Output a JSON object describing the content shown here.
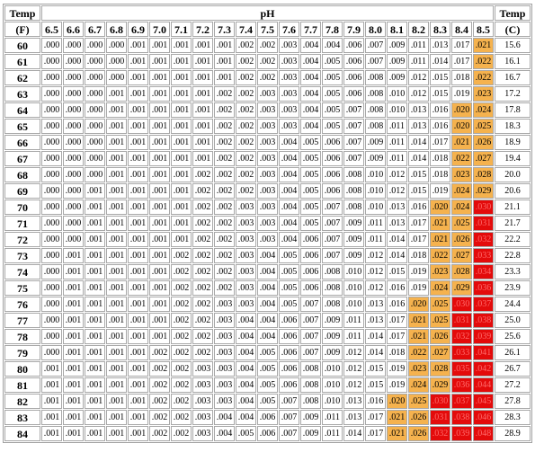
{
  "header": {
    "left_title": "Temp",
    "left_unit": "(F)",
    "center_title": "pH",
    "right_title": "Temp",
    "right_unit": "(C)"
  },
  "ph_values": [
    "6.5",
    "6.6",
    "6.7",
    "6.8",
    "6.9",
    "7.0",
    "7.1",
    "7.2",
    "7.3",
    "7.4",
    "7.5",
    "7.6",
    "7.7",
    "7.8",
    "7.9",
    "8.0",
    "8.1",
    "8.2",
    "8.3",
    "8.4",
    "8.5"
  ],
  "colors": {
    "orange": "#f5b24e",
    "red": "#e30b0b",
    "red_text": "#ff6a6a"
  },
  "rows": [
    {
      "f": "60",
      "c": "15.6",
      "v": [
        ".000",
        ".000",
        ".000",
        ".000",
        ".001",
        ".001",
        ".001",
        ".001",
        ".001",
        ".002",
        ".002",
        ".003",
        ".004",
        ".004",
        ".006",
        ".007",
        ".009",
        ".011",
        ".013",
        ".017",
        ".021"
      ],
      "lvl": [
        0,
        0,
        0,
        0,
        0,
        0,
        0,
        0,
        0,
        0,
        0,
        0,
        0,
        0,
        0,
        0,
        0,
        0,
        0,
        0,
        1
      ]
    },
    {
      "f": "61",
      "c": "16.1",
      "v": [
        ".000",
        ".000",
        ".000",
        ".000",
        ".001",
        ".001",
        ".001",
        ".001",
        ".001",
        ".002",
        ".002",
        ".003",
        ".004",
        ".005",
        ".006",
        ".007",
        ".009",
        ".011",
        ".014",
        ".017",
        ".022"
      ],
      "lvl": [
        0,
        0,
        0,
        0,
        0,
        0,
        0,
        0,
        0,
        0,
        0,
        0,
        0,
        0,
        0,
        0,
        0,
        0,
        0,
        0,
        1
      ]
    },
    {
      "f": "62",
      "c": "16.7",
      "v": [
        ".000",
        ".000",
        ".000",
        ".000",
        ".001",
        ".001",
        ".001",
        ".001",
        ".001",
        ".002",
        ".002",
        ".003",
        ".004",
        ".005",
        ".006",
        ".008",
        ".009",
        ".012",
        ".015",
        ".018",
        ".022"
      ],
      "lvl": [
        0,
        0,
        0,
        0,
        0,
        0,
        0,
        0,
        0,
        0,
        0,
        0,
        0,
        0,
        0,
        0,
        0,
        0,
        0,
        0,
        1
      ]
    },
    {
      "f": "63",
      "c": "17.2",
      "v": [
        ".000",
        ".000",
        ".000",
        ".001",
        ".001",
        ".001",
        ".001",
        ".001",
        ".002",
        ".002",
        ".003",
        ".003",
        ".004",
        ".005",
        ".006",
        ".008",
        ".010",
        ".012",
        ".015",
        ".019",
        ".023"
      ],
      "lvl": [
        0,
        0,
        0,
        0,
        0,
        0,
        0,
        0,
        0,
        0,
        0,
        0,
        0,
        0,
        0,
        0,
        0,
        0,
        0,
        0,
        1
      ]
    },
    {
      "f": "64",
      "c": "17.8",
      "v": [
        ".000",
        ".000",
        ".000",
        ".001",
        ".001",
        ".001",
        ".001",
        ".001",
        ".002",
        ".002",
        ".003",
        ".003",
        ".004",
        ".005",
        ".007",
        ".008",
        ".010",
        ".013",
        ".016",
        ".020",
        ".024"
      ],
      "lvl": [
        0,
        0,
        0,
        0,
        0,
        0,
        0,
        0,
        0,
        0,
        0,
        0,
        0,
        0,
        0,
        0,
        0,
        0,
        0,
        1,
        1
      ]
    },
    {
      "f": "65",
      "c": "18.3",
      "v": [
        ".000",
        ".000",
        ".000",
        ".001",
        ".001",
        ".001",
        ".001",
        ".001",
        ".002",
        ".002",
        ".003",
        ".003",
        ".004",
        ".005",
        ".007",
        ".008",
        ".011",
        ".013",
        ".016",
        ".020",
        ".025"
      ],
      "lvl": [
        0,
        0,
        0,
        0,
        0,
        0,
        0,
        0,
        0,
        0,
        0,
        0,
        0,
        0,
        0,
        0,
        0,
        0,
        0,
        1,
        1
      ]
    },
    {
      "f": "66",
      "c": "18.9",
      "v": [
        ".000",
        ".000",
        ".000",
        ".001",
        ".001",
        ".001",
        ".001",
        ".001",
        ".002",
        ".002",
        ".003",
        ".004",
        ".005",
        ".006",
        ".007",
        ".009",
        ".011",
        ".014",
        ".017",
        ".021",
        ".026"
      ],
      "lvl": [
        0,
        0,
        0,
        0,
        0,
        0,
        0,
        0,
        0,
        0,
        0,
        0,
        0,
        0,
        0,
        0,
        0,
        0,
        0,
        1,
        1
      ]
    },
    {
      "f": "67",
      "c": "19.4",
      "v": [
        ".000",
        ".000",
        ".000",
        ".001",
        ".001",
        ".001",
        ".001",
        ".001",
        ".002",
        ".002",
        ".003",
        ".004",
        ".005",
        ".006",
        ".007",
        ".009",
        ".011",
        ".014",
        ".018",
        ".022",
        ".027"
      ],
      "lvl": [
        0,
        0,
        0,
        0,
        0,
        0,
        0,
        0,
        0,
        0,
        0,
        0,
        0,
        0,
        0,
        0,
        0,
        0,
        0,
        1,
        1
      ]
    },
    {
      "f": "68",
      "c": "20.0",
      "v": [
        ".000",
        ".000",
        ".000",
        ".001",
        ".001",
        ".001",
        ".001",
        ".002",
        ".002",
        ".002",
        ".003",
        ".004",
        ".005",
        ".006",
        ".008",
        ".010",
        ".012",
        ".015",
        ".018",
        ".023",
        ".028"
      ],
      "lvl": [
        0,
        0,
        0,
        0,
        0,
        0,
        0,
        0,
        0,
        0,
        0,
        0,
        0,
        0,
        0,
        0,
        0,
        0,
        0,
        1,
        1
      ]
    },
    {
      "f": "69",
      "c": "20.6",
      "v": [
        ".000",
        ".000",
        ".001",
        ".001",
        ".001",
        ".001",
        ".001",
        ".002",
        ".002",
        ".002",
        ".003",
        ".004",
        ".005",
        ".006",
        ".008",
        ".010",
        ".012",
        ".015",
        ".019",
        ".024",
        ".029"
      ],
      "lvl": [
        0,
        0,
        0,
        0,
        0,
        0,
        0,
        0,
        0,
        0,
        0,
        0,
        0,
        0,
        0,
        0,
        0,
        0,
        0,
        1,
        1
      ]
    },
    {
      "f": "70",
      "c": "21.1",
      "v": [
        ".000",
        ".000",
        ".001",
        ".001",
        ".001",
        ".001",
        ".001",
        ".002",
        ".002",
        ".003",
        ".003",
        ".004",
        ".005",
        ".007",
        ".008",
        ".010",
        ".013",
        ".016",
        ".020",
        ".024",
        ".030"
      ],
      "lvl": [
        0,
        0,
        0,
        0,
        0,
        0,
        0,
        0,
        0,
        0,
        0,
        0,
        0,
        0,
        0,
        0,
        0,
        0,
        1,
        1,
        2
      ]
    },
    {
      "f": "71",
      "c": "21.7",
      "v": [
        ".000",
        ".000",
        ".001",
        ".001",
        ".001",
        ".001",
        ".001",
        ".002",
        ".002",
        ".003",
        ".003",
        ".004",
        ".005",
        ".007",
        ".009",
        ".011",
        ".013",
        ".017",
        ".021",
        ".025",
        ".031"
      ],
      "lvl": [
        0,
        0,
        0,
        0,
        0,
        0,
        0,
        0,
        0,
        0,
        0,
        0,
        0,
        0,
        0,
        0,
        0,
        0,
        1,
        1,
        2
      ]
    },
    {
      "f": "72",
      "c": "22.2",
      "v": [
        ".000",
        ".000",
        ".001",
        ".001",
        ".001",
        ".001",
        ".001",
        ".002",
        ".002",
        ".003",
        ".003",
        ".004",
        ".006",
        ".007",
        ".009",
        ".011",
        ".014",
        ".017",
        ".021",
        ".026",
        ".032"
      ],
      "lvl": [
        0,
        0,
        0,
        0,
        0,
        0,
        0,
        0,
        0,
        0,
        0,
        0,
        0,
        0,
        0,
        0,
        0,
        0,
        1,
        1,
        2
      ]
    },
    {
      "f": "73",
      "c": "22.8",
      "v": [
        ".000",
        ".001",
        ".001",
        ".001",
        ".001",
        ".001",
        ".002",
        ".002",
        ".002",
        ".003",
        ".004",
        ".005",
        ".006",
        ".007",
        ".009",
        ".012",
        ".014",
        ".018",
        ".022",
        ".027",
        ".033"
      ],
      "lvl": [
        0,
        0,
        0,
        0,
        0,
        0,
        0,
        0,
        0,
        0,
        0,
        0,
        0,
        0,
        0,
        0,
        0,
        0,
        1,
        1,
        2
      ]
    },
    {
      "f": "74",
      "c": "23.3",
      "v": [
        ".000",
        ".001",
        ".001",
        ".001",
        ".001",
        ".001",
        ".002",
        ".002",
        ".002",
        ".003",
        ".004",
        ".005",
        ".006",
        ".008",
        ".010",
        ".012",
        ".015",
        ".019",
        ".023",
        ".028",
        ".034"
      ],
      "lvl": [
        0,
        0,
        0,
        0,
        0,
        0,
        0,
        0,
        0,
        0,
        0,
        0,
        0,
        0,
        0,
        0,
        0,
        0,
        1,
        1,
        2
      ]
    },
    {
      "f": "75",
      "c": "23.9",
      "v": [
        ".000",
        ".001",
        ".001",
        ".001",
        ".001",
        ".001",
        ".002",
        ".002",
        ".002",
        ".003",
        ".004",
        ".005",
        ".006",
        ".008",
        ".010",
        ".012",
        ".016",
        ".019",
        ".024",
        ".029",
        ".036"
      ],
      "lvl": [
        0,
        0,
        0,
        0,
        0,
        0,
        0,
        0,
        0,
        0,
        0,
        0,
        0,
        0,
        0,
        0,
        0,
        0,
        1,
        1,
        2
      ]
    },
    {
      "f": "76",
      "c": "24.4",
      "v": [
        ".000",
        ".001",
        ".001",
        ".001",
        ".001",
        ".001",
        ".002",
        ".002",
        ".003",
        ".003",
        ".004",
        ".005",
        ".007",
        ".008",
        ".010",
        ".013",
        ".016",
        ".020",
        ".025",
        ".030",
        ".037"
      ],
      "lvl": [
        0,
        0,
        0,
        0,
        0,
        0,
        0,
        0,
        0,
        0,
        0,
        0,
        0,
        0,
        0,
        0,
        0,
        1,
        1,
        2,
        2
      ]
    },
    {
      "f": "77",
      "c": "25.0",
      "v": [
        ".000",
        ".001",
        ".001",
        ".001",
        ".001",
        ".001",
        ".002",
        ".002",
        ".003",
        ".004",
        ".004",
        ".006",
        ".007",
        ".009",
        ".011",
        ".013",
        ".017",
        ".021",
        ".025",
        ".031",
        ".038"
      ],
      "lvl": [
        0,
        0,
        0,
        0,
        0,
        0,
        0,
        0,
        0,
        0,
        0,
        0,
        0,
        0,
        0,
        0,
        0,
        1,
        1,
        2,
        2
      ]
    },
    {
      "f": "78",
      "c": "25.6",
      "v": [
        ".000",
        ".001",
        ".001",
        ".001",
        ".001",
        ".001",
        ".002",
        ".002",
        ".003",
        ".004",
        ".004",
        ".006",
        ".007",
        ".009",
        ".011",
        ".014",
        ".017",
        ".021",
        ".026",
        ".032",
        ".039"
      ],
      "lvl": [
        0,
        0,
        0,
        0,
        0,
        0,
        0,
        0,
        0,
        0,
        0,
        0,
        0,
        0,
        0,
        0,
        0,
        1,
        1,
        2,
        2
      ]
    },
    {
      "f": "79",
      "c": "26.1",
      "v": [
        ".000",
        ".001",
        ".001",
        ".001",
        ".001",
        ".002",
        ".002",
        ".002",
        ".003",
        ".004",
        ".005",
        ".006",
        ".007",
        ".009",
        ".012",
        ".014",
        ".018",
        ".022",
        ".027",
        ".033",
        ".041"
      ],
      "lvl": [
        0,
        0,
        0,
        0,
        0,
        0,
        0,
        0,
        0,
        0,
        0,
        0,
        0,
        0,
        0,
        0,
        0,
        1,
        1,
        2,
        2
      ]
    },
    {
      "f": "80",
      "c": "26.7",
      "v": [
        ".001",
        ".001",
        ".001",
        ".001",
        ".001",
        ".002",
        ".002",
        ".003",
        ".003",
        ".004",
        ".005",
        ".006",
        ".008",
        ".010",
        ".012",
        ".015",
        ".019",
        ".023",
        ".028",
        ".035",
        ".042"
      ],
      "lvl": [
        0,
        0,
        0,
        0,
        0,
        0,
        0,
        0,
        0,
        0,
        0,
        0,
        0,
        0,
        0,
        0,
        0,
        1,
        1,
        2,
        2
      ]
    },
    {
      "f": "81",
      "c": "27.2",
      "v": [
        ".001",
        ".001",
        ".001",
        ".001",
        ".001",
        ".002",
        ".002",
        ".003",
        ".003",
        ".004",
        ".005",
        ".006",
        ".008",
        ".010",
        ".012",
        ".015",
        ".019",
        ".024",
        ".029",
        ".036",
        ".044"
      ],
      "lvl": [
        0,
        0,
        0,
        0,
        0,
        0,
        0,
        0,
        0,
        0,
        0,
        0,
        0,
        0,
        0,
        0,
        0,
        1,
        1,
        2,
        2
      ]
    },
    {
      "f": "82",
      "c": "27.8",
      "v": [
        ".001",
        ".001",
        ".001",
        ".001",
        ".001",
        ".002",
        ".002",
        ".003",
        ".003",
        ".004",
        ".005",
        ".007",
        ".008",
        ".010",
        ".013",
        ".016",
        ".020",
        ".025",
        ".030",
        ".037",
        ".045"
      ],
      "lvl": [
        0,
        0,
        0,
        0,
        0,
        0,
        0,
        0,
        0,
        0,
        0,
        0,
        0,
        0,
        0,
        0,
        1,
        1,
        2,
        2,
        2
      ]
    },
    {
      "f": "83",
      "c": "28.3",
      "v": [
        ".001",
        ".001",
        ".001",
        ".001",
        ".001",
        ".002",
        ".002",
        ".003",
        ".004",
        ".004",
        ".006",
        ".007",
        ".009",
        ".011",
        ".013",
        ".017",
        ".021",
        ".026",
        ".031",
        ".038",
        ".046"
      ],
      "lvl": [
        0,
        0,
        0,
        0,
        0,
        0,
        0,
        0,
        0,
        0,
        0,
        0,
        0,
        0,
        0,
        0,
        1,
        1,
        2,
        2,
        2
      ]
    },
    {
      "f": "84",
      "c": "28.9",
      "v": [
        ".001",
        ".001",
        ".001",
        ".001",
        ".001",
        ".002",
        ".002",
        ".003",
        ".004",
        ".005",
        ".006",
        ".007",
        ".009",
        ".011",
        ".014",
        ".017",
        ".021",
        ".026",
        ".032",
        ".039",
        ".048"
      ],
      "lvl": [
        0,
        0,
        0,
        0,
        0,
        0,
        0,
        0,
        0,
        0,
        0,
        0,
        0,
        0,
        0,
        0,
        1,
        1,
        2,
        2,
        2
      ]
    }
  ]
}
